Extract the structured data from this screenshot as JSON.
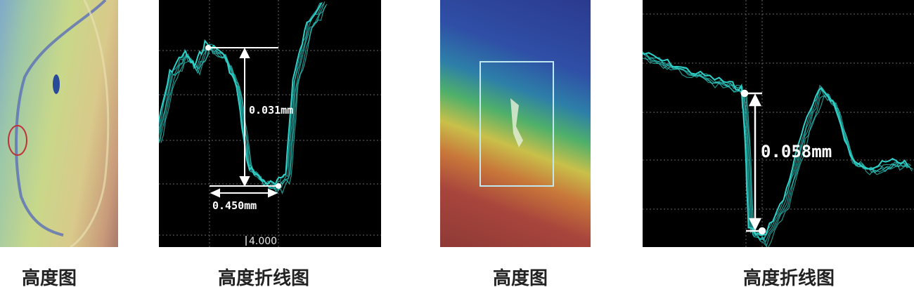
{
  "panels": [
    {
      "caption": "高度图",
      "kind": "height-map"
    },
    {
      "caption": "高度折线图",
      "kind": "height-profile",
      "height_label": "0.031mm",
      "width_label": "0.450mm",
      "axis_label": "4.000",
      "line_color": "#2fd0c8"
    },
    {
      "caption": "高度图",
      "kind": "height-map"
    },
    {
      "caption": "高度折线图",
      "kind": "height-profile",
      "height_label": "0.058mm",
      "line_color": "#2fd0c8"
    }
  ]
}
